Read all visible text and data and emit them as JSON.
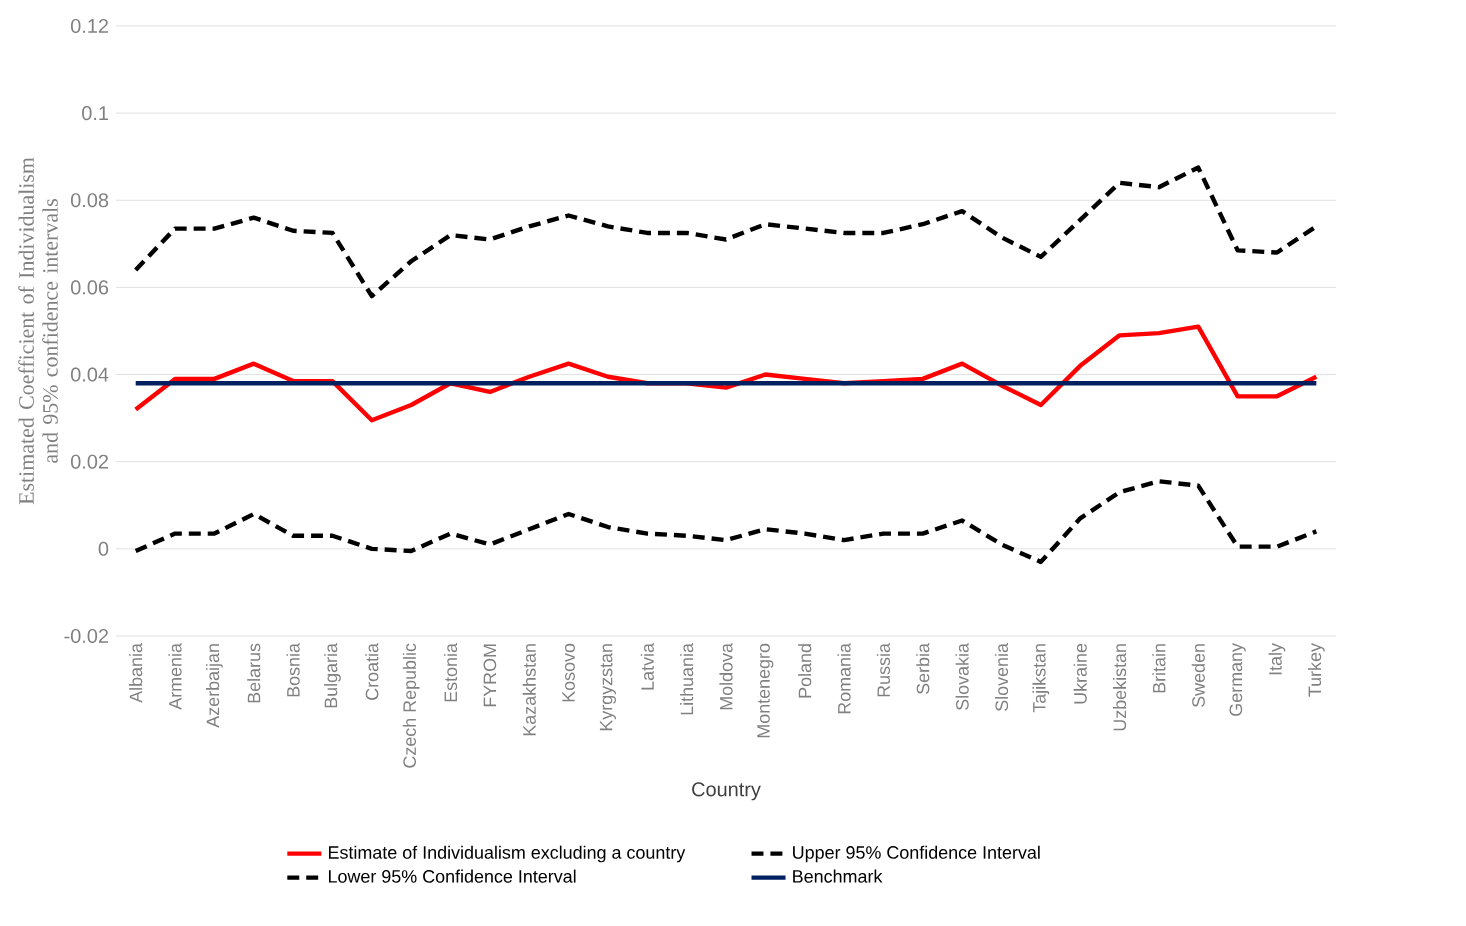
{
  "chart_data": {
    "type": "line",
    "xlabel": "Country",
    "ylabel": "Estimated Coefficient of Individualism and 95% confidence intervals",
    "categories": [
      "Albania",
      "Armenia",
      "Azerbaijan",
      "Belarus",
      "Bosnia",
      "Bulgaria",
      "Croatia",
      "Czech Republic",
      "Estonia",
      "FYROM",
      "Kazakhstan",
      "Kosovo",
      "Kyrgyzstan",
      "Latvia",
      "Lithuania",
      "Moldova",
      "Montenegro",
      "Poland",
      "Romania",
      "Russia",
      "Serbia",
      "Slovakia",
      "Slovenia",
      "Tajikstan",
      "Ukraine",
      "Uzbekistan",
      "Britain",
      "Sweden",
      "Germany",
      "Italy",
      "Turkey"
    ],
    "series": [
      {
        "name": "Estimate of Individualism excluding a country",
        "color": "#ff0000",
        "line_style": "solid",
        "values": [
          0.032,
          0.039,
          0.039,
          0.0425,
          0.0385,
          0.0385,
          0.0295,
          0.033,
          0.038,
          0.036,
          0.0395,
          0.0425,
          0.0395,
          0.038,
          0.038,
          0.037,
          0.04,
          0.039,
          0.038,
          0.0385,
          0.039,
          0.0425,
          0.0375,
          0.033,
          0.042,
          0.049,
          0.0495,
          0.051,
          0.035,
          0.035,
          0.0395
        ]
      },
      {
        "name": "Upper 95% Confidence Interval",
        "color": "#000000",
        "line_style": "dashed",
        "values": [
          0.064,
          0.0735,
          0.0735,
          0.076,
          0.073,
          0.0725,
          0.058,
          0.066,
          0.072,
          0.071,
          0.074,
          0.0765,
          0.074,
          0.0725,
          0.0725,
          0.071,
          0.0745,
          0.0735,
          0.0725,
          0.0725,
          0.0745,
          0.0775,
          0.0715,
          0.067,
          0.0755,
          0.084,
          0.083,
          0.0875,
          0.0685,
          0.068,
          0.074
        ]
      },
      {
        "name": "Lower 95% Confidence Interval",
        "color": "#000000",
        "line_style": "dashed",
        "values": [
          -0.0005,
          0.0035,
          0.0035,
          0.008,
          0.003,
          0.003,
          0.0,
          -0.0005,
          0.0035,
          0.001,
          0.0045,
          0.008,
          0.005,
          0.0035,
          0.003,
          0.002,
          0.0045,
          0.0035,
          0.002,
          0.0035,
          0.0035,
          0.0065,
          0.001,
          -0.003,
          0.007,
          0.013,
          0.0155,
          0.0145,
          0.0005,
          0.0005,
          0.004
        ]
      },
      {
        "name": "Benchmark",
        "color": "#002060",
        "line_style": "solid",
        "values": [
          0.038,
          0.038,
          0.038,
          0.038,
          0.038,
          0.038,
          0.038,
          0.038,
          0.038,
          0.038,
          0.038,
          0.038,
          0.038,
          0.038,
          0.038,
          0.038,
          0.038,
          0.038,
          0.038,
          0.038,
          0.038,
          0.038,
          0.038,
          0.038,
          0.038,
          0.038,
          0.038,
          0.038,
          0.038,
          0.038,
          0.038
        ]
      }
    ],
    "ylim": [
      -0.02,
      0.12
    ],
    "yticks": [
      -0.02,
      0,
      0.02,
      0.04,
      0.06,
      0.08,
      0.1,
      0.12
    ],
    "grid": "y",
    "legend": "bottom",
    "marker": "none"
  }
}
